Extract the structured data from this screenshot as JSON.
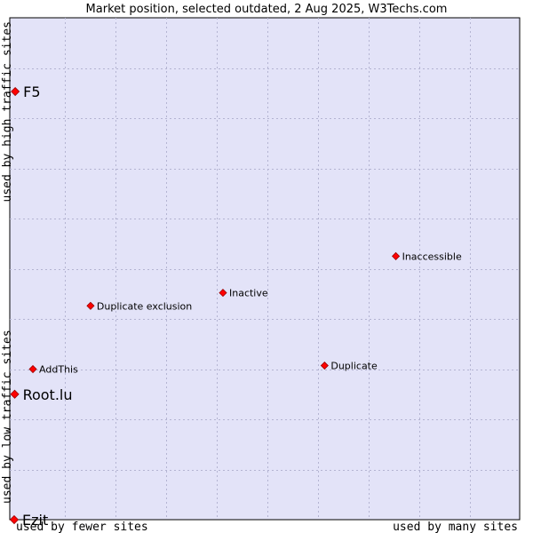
{
  "chart_data": {
    "type": "scatter",
    "title": "Market position, selected outdated, 2 Aug 2025, W3Techs.com",
    "xlabel_left": "used by fewer sites",
    "xlabel_right": "used by many sites",
    "ylabel_bottom": "used by low traffic sites",
    "ylabel_top": "used by high traffic sites",
    "xlim": [
      0,
      100
    ],
    "ylim": [
      0,
      100
    ],
    "grid": true,
    "colors": {
      "plot_background": "#e3e3f8",
      "point_fill": "#ff0000",
      "point_stroke": "#990000",
      "grid": "#b4b4d2"
    },
    "points": [
      {
        "name": "F5",
        "x": 0.2,
        "y": 85.3,
        "large": true
      },
      {
        "name": "Root.lu",
        "x": 0.1,
        "y": 25.0,
        "large": true
      },
      {
        "name": "Ezit",
        "x": 0.0,
        "y": 0.0,
        "large": true
      },
      {
        "name": "AddThis",
        "x": 3.7,
        "y": 30.0,
        "large": false
      },
      {
        "name": "Duplicate exclusion",
        "x": 15.1,
        "y": 42.6,
        "large": false
      },
      {
        "name": "Inactive",
        "x": 41.3,
        "y": 45.2,
        "large": false
      },
      {
        "name": "Inaccessible",
        "x": 75.5,
        "y": 52.5,
        "large": false
      },
      {
        "name": "Duplicate",
        "x": 61.4,
        "y": 30.7,
        "large": false
      }
    ]
  }
}
